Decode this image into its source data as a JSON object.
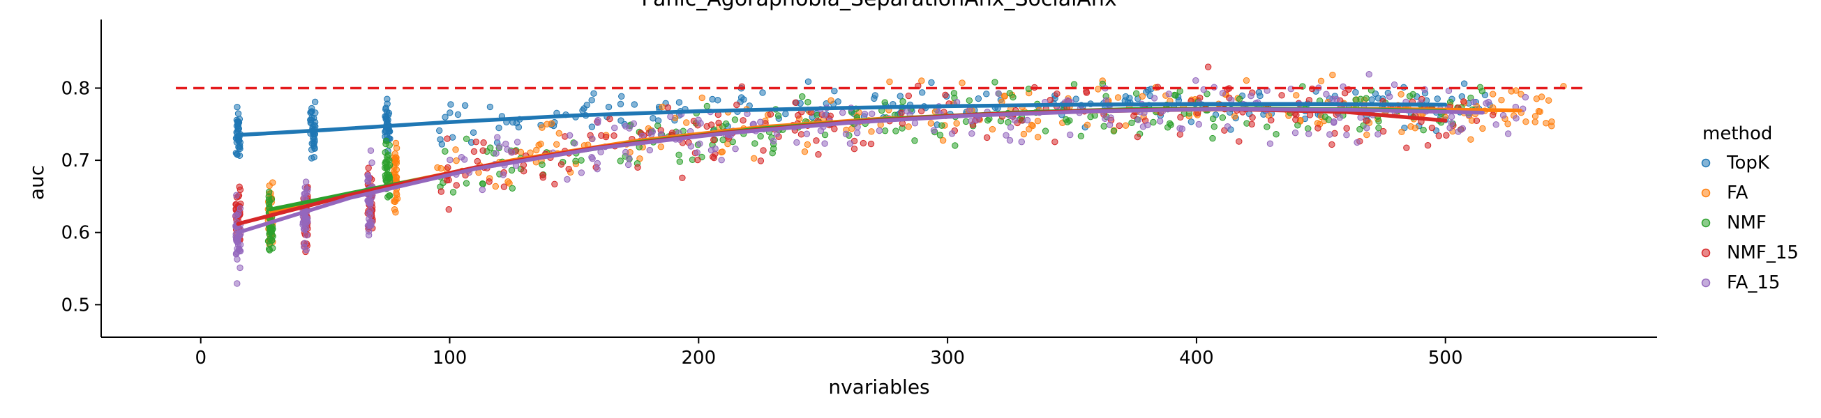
{
  "chart_data": {
    "type": "scatter",
    "title": "Panic_Agoraphobia_SeparationAnx_SocialAnx",
    "xlabel": "nvariables",
    "ylabel": "auc",
    "xlim": [
      -40,
      585
    ],
    "ylim": [
      0.455,
      0.895
    ],
    "xticks": [
      "0",
      "100",
      "200",
      "300",
      "400",
      "500"
    ],
    "yticks": [
      "0.5",
      "0.6",
      "0.7",
      "0.8"
    ],
    "reference_line": {
      "y": 0.8,
      "style": "dashed",
      "color": "#e41a1c"
    },
    "legend": {
      "title": "method",
      "placement": "right"
    },
    "series": [
      {
        "name": "TopK",
        "color": "#1f77b4",
        "trend": [
          [
            15,
            0.735
          ],
          [
            50,
            0.742
          ],
          [
            100,
            0.753
          ],
          [
            150,
            0.762
          ],
          [
            200,
            0.768
          ],
          [
            250,
            0.772
          ],
          [
            300,
            0.775
          ],
          [
            350,
            0.777
          ],
          [
            400,
            0.778
          ],
          [
            450,
            0.778
          ],
          [
            500,
            0.777
          ]
        ],
        "cluster_centers": [
          [
            15,
            0.735
          ],
          [
            45,
            0.742
          ],
          [
            75,
            0.748
          ]
        ],
        "spread": 0.028
      },
      {
        "name": "FA",
        "color": "#ff7f0e",
        "trend": [
          [
            28,
            0.628
          ],
          [
            75,
            0.665
          ],
          [
            125,
            0.7
          ],
          [
            175,
            0.727
          ],
          [
            225,
            0.746
          ],
          [
            275,
            0.758
          ],
          [
            325,
            0.765
          ],
          [
            375,
            0.769
          ],
          [
            425,
            0.771
          ],
          [
            475,
            0.771
          ],
          [
            530,
            0.769
          ]
        ],
        "cluster_centers": [
          [
            28,
            0.625
          ],
          [
            78,
            0.68
          ]
        ],
        "spread": 0.04
      },
      {
        "name": "NMF",
        "color": "#2ca02c",
        "trend": [
          [
            28,
            0.632
          ],
          [
            75,
            0.665
          ],
          [
            125,
            0.698
          ],
          [
            175,
            0.725
          ],
          [
            225,
            0.744
          ],
          [
            275,
            0.757
          ],
          [
            325,
            0.766
          ],
          [
            375,
            0.771
          ],
          [
            425,
            0.772
          ],
          [
            475,
            0.77
          ],
          [
            500,
            0.768
          ]
        ],
        "cluster_centers": [
          [
            28,
            0.615
          ],
          [
            75,
            0.68
          ]
        ],
        "spread": 0.035
      },
      {
        "name": "NMF_15",
        "color": "#d62728",
        "trend": [
          [
            15,
            0.612
          ],
          [
            60,
            0.652
          ],
          [
            110,
            0.69
          ],
          [
            160,
            0.718
          ],
          [
            210,
            0.738
          ],
          [
            260,
            0.753
          ],
          [
            310,
            0.763
          ],
          [
            360,
            0.769
          ],
          [
            410,
            0.771
          ],
          [
            460,
            0.767
          ],
          [
            500,
            0.755
          ]
        ],
        "cluster_centers": [
          [
            15,
            0.62
          ],
          [
            42,
            0.625
          ],
          [
            68,
            0.64
          ]
        ],
        "spread": 0.042
      },
      {
        "name": "FA_15",
        "color": "#9467bd",
        "trend": [
          [
            15,
            0.6
          ],
          [
            60,
            0.648
          ],
          [
            110,
            0.688
          ],
          [
            160,
            0.717
          ],
          [
            210,
            0.737
          ],
          [
            260,
            0.752
          ],
          [
            310,
            0.762
          ],
          [
            360,
            0.768
          ],
          [
            410,
            0.771
          ],
          [
            460,
            0.77
          ],
          [
            515,
            0.766
          ]
        ],
        "cluster_centers": [
          [
            15,
            0.59
          ],
          [
            42,
            0.62
          ],
          [
            68,
            0.655
          ]
        ],
        "spread": 0.04
      }
    ]
  }
}
